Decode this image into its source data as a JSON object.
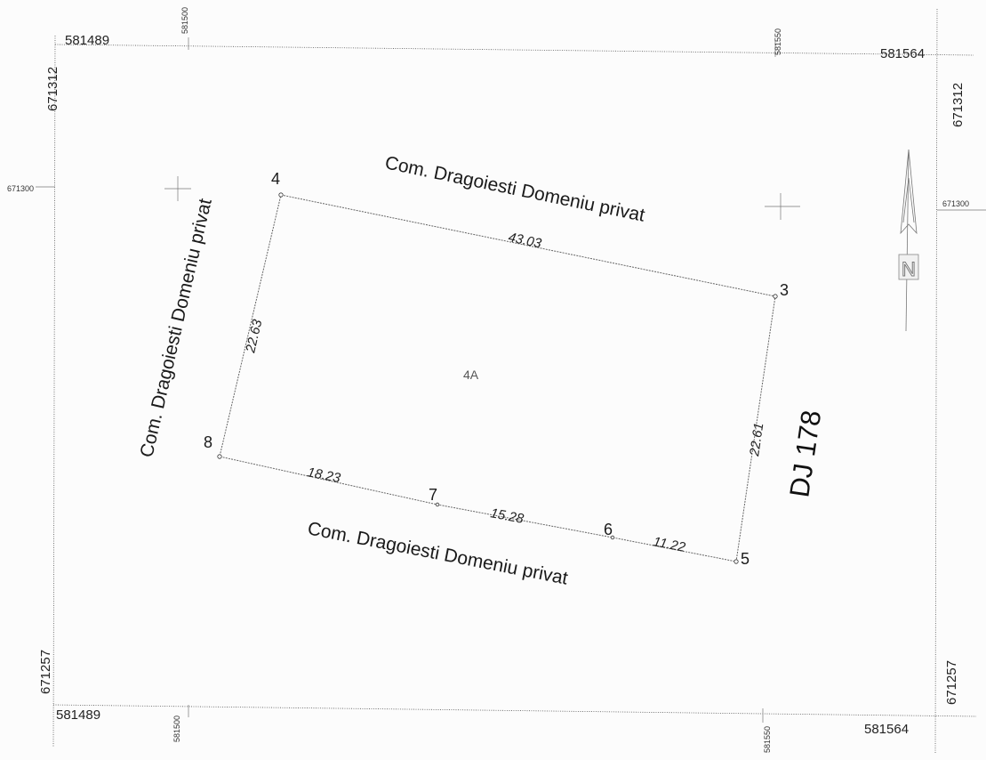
{
  "frame": {
    "x_left": "581489",
    "x_right": "581564",
    "y_top": "671312",
    "y_bottom": "671257",
    "x_grid_1": "581500",
    "x_grid_2": "581550",
    "y_grid": "671300"
  },
  "parcel": {
    "id": "4A",
    "vertices": [
      "4",
      "3",
      "5",
      "6",
      "7",
      "8"
    ],
    "segment_lengths": {
      "top": "43.03",
      "left": "22.63",
      "right": "22.61",
      "bottom_8_7": "18.23",
      "bottom_7_6": "15.28",
      "bottom_6_5": "11.22"
    }
  },
  "neighbors": {
    "north": "Com. Dragoiesti Domeniu privat",
    "west": "Com. Dragoiesti Domeniu privat",
    "south": "Com. Dragoiesti Domeniu privat",
    "east": "DJ 178"
  },
  "north_arrow": {
    "label": "N"
  }
}
